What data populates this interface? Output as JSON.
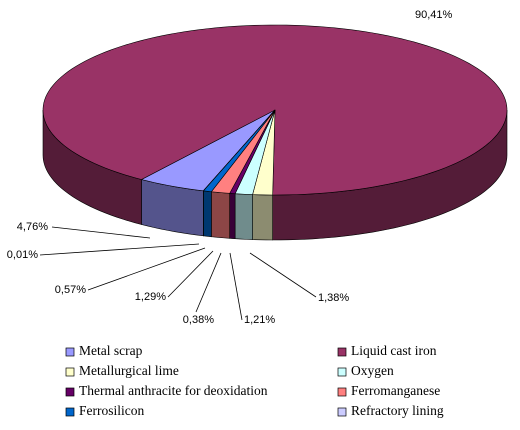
{
  "chart_data": {
    "type": "pie3d",
    "categories": [
      "Metal scrap",
      "Liquid cast iron",
      "Metallurgical lime",
      "Oxygen",
      "Thermal anthracite for deoxidation",
      "Ferromanganese",
      "Ferrosilicon",
      "Refractory lining"
    ],
    "values": [
      4.76,
      90.41,
      1.38,
      1.21,
      0.38,
      1.29,
      0.57,
      0.01
    ],
    "value_labels": [
      "4,76%",
      "90,41%",
      "1,38%",
      "1,21%",
      "0,38%",
      "1,29%",
      "0,57%",
      "0,01%"
    ],
    "colors": [
      "#9999ff",
      "#993366",
      "#ffffcc",
      "#ccffff",
      "#660066",
      "#ff8080",
      "#0066cc",
      "#ccccff"
    ]
  }
}
